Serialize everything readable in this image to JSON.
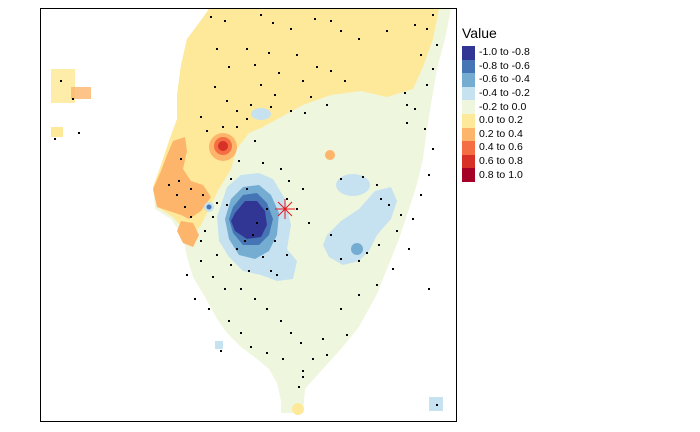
{
  "legend": {
    "title": "Value",
    "classes": [
      {
        "label": "-1.0 to -0.8",
        "color": "#313695"
      },
      {
        "label": "-0.8 to -0.6",
        "color": "#4575b4"
      },
      {
        "label": "-0.6 to -0.4",
        "color": "#74add1"
      },
      {
        "label": "-0.4 to -0.2",
        "color": "#c6e1ef"
      },
      {
        "label": "-0.2 to 0.0",
        "color": "#eef7dd"
      },
      {
        "label": "0.0 to 0.2",
        "color": "#fee99a"
      },
      {
        "label": "0.2 to 0.4",
        "color": "#fdb56b"
      },
      {
        "label": "0.4 to 0.6",
        "color": "#f46d43"
      },
      {
        "label": "0.6 to 0.8",
        "color": "#d73027"
      },
      {
        "label": "0.8 to 1.0",
        "color": "#a50026"
      }
    ]
  },
  "map": {
    "marker_color": "#e8161d",
    "station_color": "#000000"
  }
}
